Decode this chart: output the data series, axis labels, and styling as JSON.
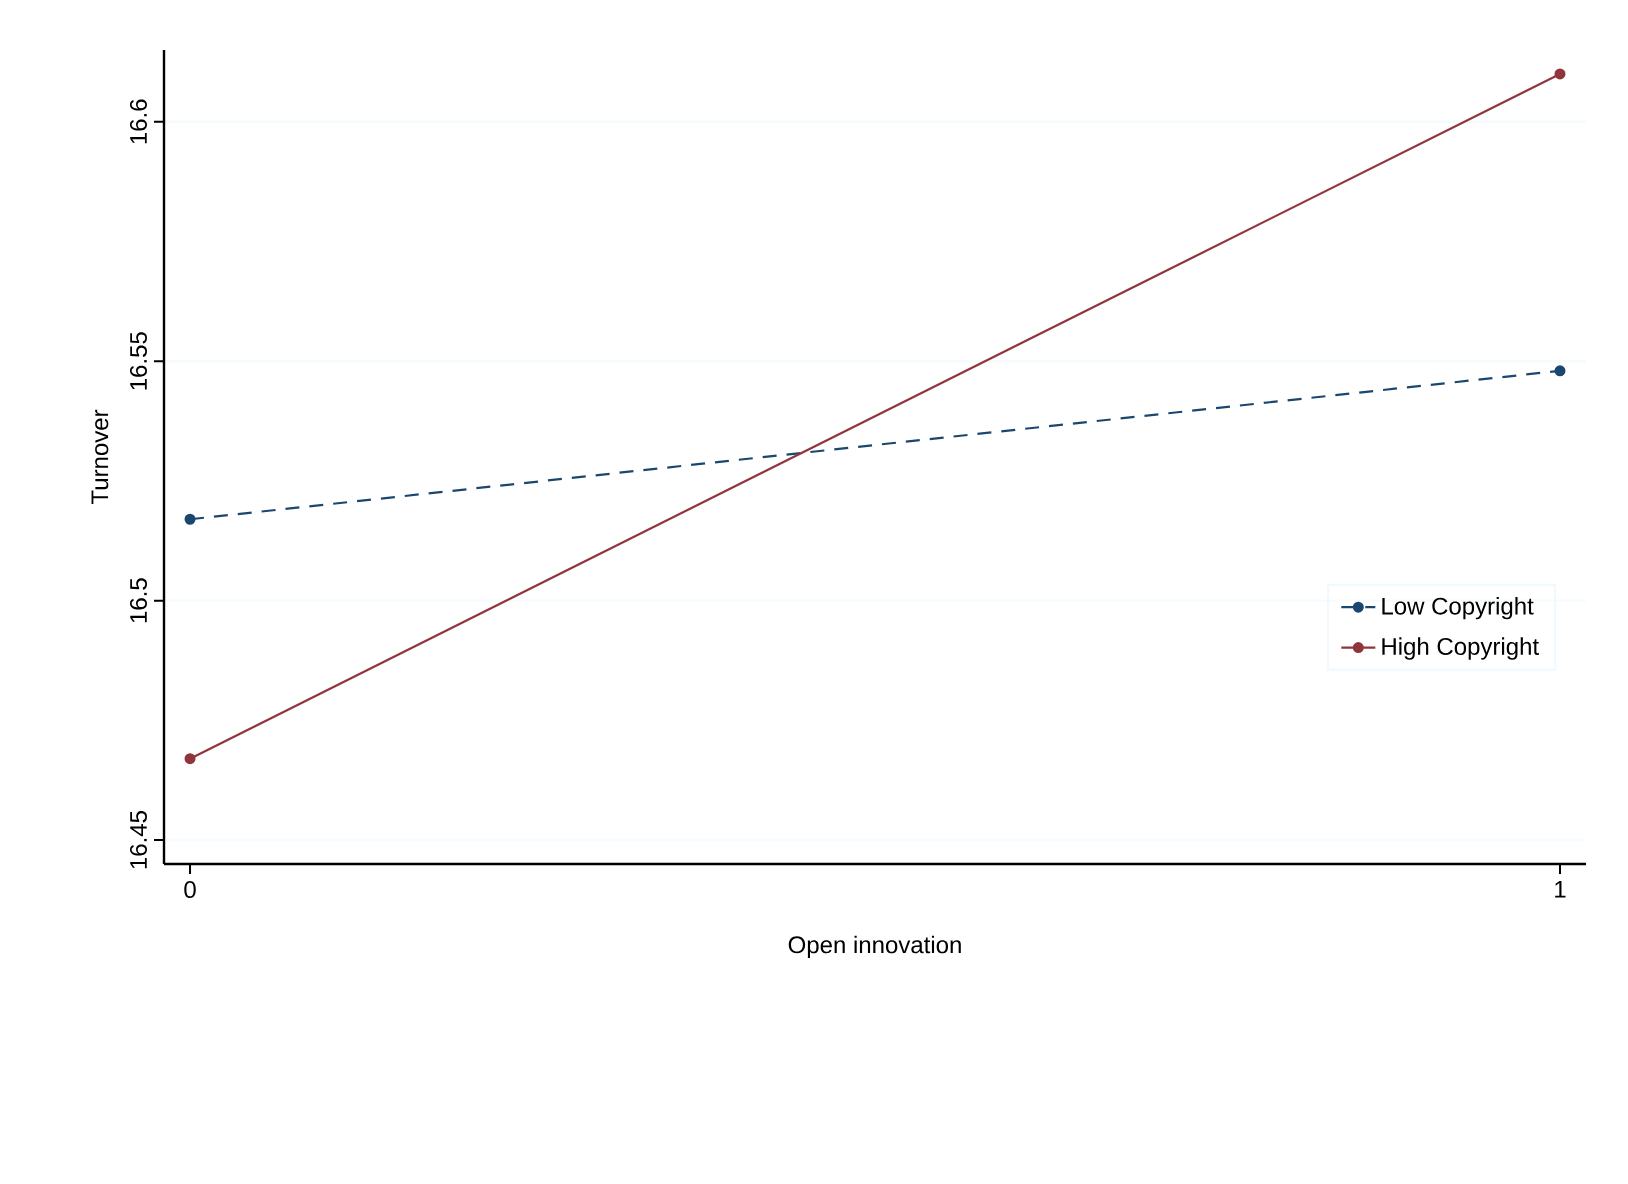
{
  "chart_data": {
    "type": "line",
    "xlabel": "Open innovation",
    "ylabel": "Turnover",
    "x": [
      0,
      1
    ],
    "series": [
      {
        "name": "Low Copyright",
        "color": "#1a476f",
        "values": [
          16.517,
          16.548
        ],
        "line_style": "dashed"
      },
      {
        "name": "High Copyright",
        "color": "#90353b",
        "values": [
          16.467,
          16.61
        ],
        "line_style": "solid"
      }
    ],
    "xlim": [
      -0.019,
      1.019
    ],
    "ylim": [
      16.445,
      16.615
    ],
    "xticks": [
      0,
      1
    ],
    "yticks": [
      16.45,
      16.5,
      16.55,
      16.6
    ],
    "grid": "y",
    "legend": "right",
    "marker": "circle"
  }
}
